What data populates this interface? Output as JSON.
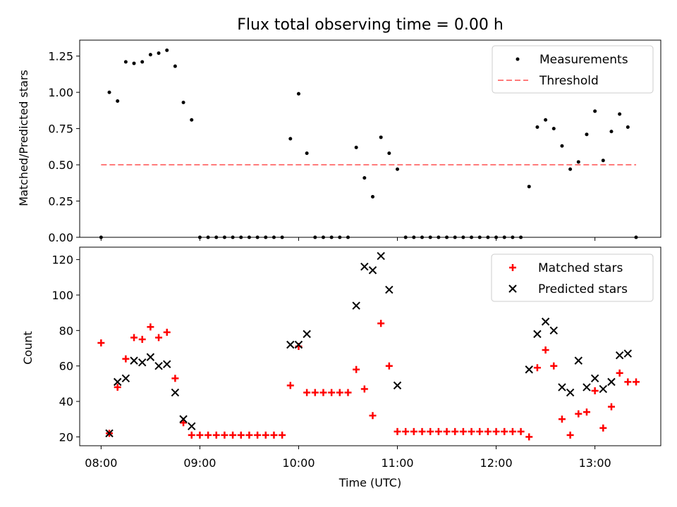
{
  "chart_data": [
    {
      "type": "scatter",
      "title": "Flux total observing time = 0.00 h",
      "ylabel": "Matched/Predicted stars",
      "xlabel": "",
      "ylim": [
        0,
        1.36
      ],
      "yticks": [
        "0.00",
        "0.25",
        "0.50",
        "0.75",
        "1.00",
        "1.25"
      ],
      "grid": false,
      "legend": {
        "placement": "top-right",
        "entries": [
          "Measurements",
          "Threshold"
        ]
      },
      "series": [
        {
          "name": "Measurements",
          "marker": "dot",
          "color": "#000000",
          "points": [
            [
              "08:00",
              0
            ],
            [
              "08:05",
              1.0
            ],
            [
              "08:10",
              0.94
            ],
            [
              "08:15",
              1.21
            ],
            [
              "08:20",
              1.2
            ],
            [
              "08:25",
              1.21
            ],
            [
              "08:30",
              1.26
            ],
            [
              "08:35",
              1.27
            ],
            [
              "08:40",
              1.29
            ],
            [
              "08:45",
              1.18
            ],
            [
              "08:50",
              0.93
            ],
            [
              "08:55",
              0.81
            ],
            [
              "09:00",
              0
            ],
            [
              "09:05",
              0
            ],
            [
              "09:10",
              0
            ],
            [
              "09:15",
              0
            ],
            [
              "09:20",
              0
            ],
            [
              "09:25",
              0
            ],
            [
              "09:30",
              0
            ],
            [
              "09:35",
              0
            ],
            [
              "09:40",
              0
            ],
            [
              "09:45",
              0
            ],
            [
              "09:50",
              0
            ],
            [
              "09:55",
              0.68
            ],
            [
              "10:00",
              0.99
            ],
            [
              "10:05",
              0.58
            ],
            [
              "10:10",
              0
            ],
            [
              "10:15",
              0
            ],
            [
              "10:20",
              0
            ],
            [
              "10:25",
              0
            ],
            [
              "10:30",
              0
            ],
            [
              "10:35",
              0.62
            ],
            [
              "10:40",
              0.41
            ],
            [
              "10:45",
              0.28
            ],
            [
              "10:50",
              0.69
            ],
            [
              "10:55",
              0.58
            ],
            [
              "11:00",
              0.47
            ],
            [
              "11:05",
              0
            ],
            [
              "11:10",
              0
            ],
            [
              "11:15",
              0
            ],
            [
              "11:20",
              0
            ],
            [
              "11:25",
              0
            ],
            [
              "11:30",
              0
            ],
            [
              "11:35",
              0
            ],
            [
              "11:40",
              0
            ],
            [
              "11:45",
              0
            ],
            [
              "11:50",
              0
            ],
            [
              "11:55",
              0
            ],
            [
              "12:00",
              0
            ],
            [
              "12:05",
              0
            ],
            [
              "12:10",
              0
            ],
            [
              "12:15",
              0
            ],
            [
              "12:20",
              0.35
            ],
            [
              "12:25",
              0.76
            ],
            [
              "12:30",
              0.81
            ],
            [
              "12:35",
              0.75
            ],
            [
              "12:40",
              0.63
            ],
            [
              "12:45",
              0.47
            ],
            [
              "12:50",
              0.52
            ],
            [
              "12:55",
              0.71
            ],
            [
              "13:00",
              0.87
            ],
            [
              "13:05",
              0.53
            ],
            [
              "13:10",
              0.73
            ],
            [
              "13:15",
              0.85
            ],
            [
              "13:20",
              0.76
            ],
            [
              "13:25",
              0
            ]
          ]
        },
        {
          "name": "Threshold",
          "style": "dashed",
          "color": "#ff7b7b",
          "points": [
            [
              "08:00",
              0.5
            ],
            [
              "13:25",
              0.5
            ]
          ]
        }
      ]
    },
    {
      "type": "scatter",
      "title": "",
      "ylabel": "Count",
      "xlabel": "Time (UTC)",
      "xlim": [
        "07:47",
        "13:40"
      ],
      "xticks": [
        "08:00",
        "09:00",
        "10:00",
        "11:00",
        "12:00",
        "13:00"
      ],
      "ylim": [
        15,
        127
      ],
      "yticks": [
        "20",
        "40",
        "60",
        "80",
        "100",
        "120"
      ],
      "grid": false,
      "legend": {
        "placement": "top-right",
        "entries": [
          "Matched stars",
          "Predicted stars"
        ]
      },
      "series": [
        {
          "name": "Matched stars",
          "marker": "plus",
          "color": "#ff0000",
          "points": [
            [
              "08:00",
              73
            ],
            [
              "08:05",
              22
            ],
            [
              "08:10",
              48
            ],
            [
              "08:15",
              64
            ],
            [
              "08:20",
              76
            ],
            [
              "08:25",
              75
            ],
            [
              "08:30",
              82
            ],
            [
              "08:35",
              76
            ],
            [
              "08:40",
              79
            ],
            [
              "08:45",
              53
            ],
            [
              "08:50",
              28
            ],
            [
              "08:55",
              21
            ],
            [
              "09:00",
              21
            ],
            [
              "09:05",
              21
            ],
            [
              "09:10",
              21
            ],
            [
              "09:15",
              21
            ],
            [
              "09:20",
              21
            ],
            [
              "09:25",
              21
            ],
            [
              "09:30",
              21
            ],
            [
              "09:35",
              21
            ],
            [
              "09:40",
              21
            ],
            [
              "09:45",
              21
            ],
            [
              "09:50",
              21
            ],
            [
              "09:55",
              49
            ],
            [
              "10:00",
              71
            ],
            [
              "10:05",
              45
            ],
            [
              "10:10",
              45
            ],
            [
              "10:15",
              45
            ],
            [
              "10:20",
              45
            ],
            [
              "10:25",
              45
            ],
            [
              "10:30",
              45
            ],
            [
              "10:35",
              58
            ],
            [
              "10:40",
              47
            ],
            [
              "10:45",
              32
            ],
            [
              "10:50",
              84
            ],
            [
              "10:55",
              60
            ],
            [
              "11:00",
              23
            ],
            [
              "11:05",
              23
            ],
            [
              "11:10",
              23
            ],
            [
              "11:15",
              23
            ],
            [
              "11:20",
              23
            ],
            [
              "11:25",
              23
            ],
            [
              "11:30",
              23
            ],
            [
              "11:35",
              23
            ],
            [
              "11:40",
              23
            ],
            [
              "11:45",
              23
            ],
            [
              "11:50",
              23
            ],
            [
              "11:55",
              23
            ],
            [
              "12:00",
              23
            ],
            [
              "12:05",
              23
            ],
            [
              "12:10",
              23
            ],
            [
              "12:15",
              23
            ],
            [
              "12:20",
              20
            ],
            [
              "12:25",
              59
            ],
            [
              "12:30",
              69
            ],
            [
              "12:35",
              60
            ],
            [
              "12:40",
              30
            ],
            [
              "12:45",
              21
            ],
            [
              "12:50",
              33
            ],
            [
              "12:55",
              34
            ],
            [
              "13:00",
              46
            ],
            [
              "13:05",
              25
            ],
            [
              "13:10",
              37
            ],
            [
              "13:15",
              56
            ],
            [
              "13:20",
              51
            ],
            [
              "13:25",
              51
            ]
          ]
        },
        {
          "name": "Predicted stars",
          "marker": "x",
          "color": "#000000",
          "points": [
            [
              "08:05",
              22
            ],
            [
              "08:10",
              51
            ],
            [
              "08:15",
              53
            ],
            [
              "08:20",
              63
            ],
            [
              "08:25",
              62
            ],
            [
              "08:30",
              65
            ],
            [
              "08:35",
              60
            ],
            [
              "08:40",
              61
            ],
            [
              "08:45",
              45
            ],
            [
              "08:50",
              30
            ],
            [
              "08:55",
              26
            ],
            [
              "09:55",
              72
            ],
            [
              "10:00",
              72
            ],
            [
              "10:05",
              78
            ],
            [
              "10:35",
              94
            ],
            [
              "10:40",
              116
            ],
            [
              "10:45",
              114
            ],
            [
              "10:50",
              122
            ],
            [
              "10:55",
              103
            ],
            [
              "11:00",
              49
            ],
            [
              "12:20",
              58
            ],
            [
              "12:25",
              78
            ],
            [
              "12:30",
              85
            ],
            [
              "12:35",
              80
            ],
            [
              "12:40",
              48
            ],
            [
              "12:45",
              45
            ],
            [
              "12:50",
              63
            ],
            [
              "12:55",
              48
            ],
            [
              "13:00",
              53
            ],
            [
              "13:05",
              47
            ],
            [
              "13:10",
              51
            ],
            [
              "13:15",
              66
            ],
            [
              "13:20",
              67
            ]
          ]
        }
      ]
    }
  ]
}
